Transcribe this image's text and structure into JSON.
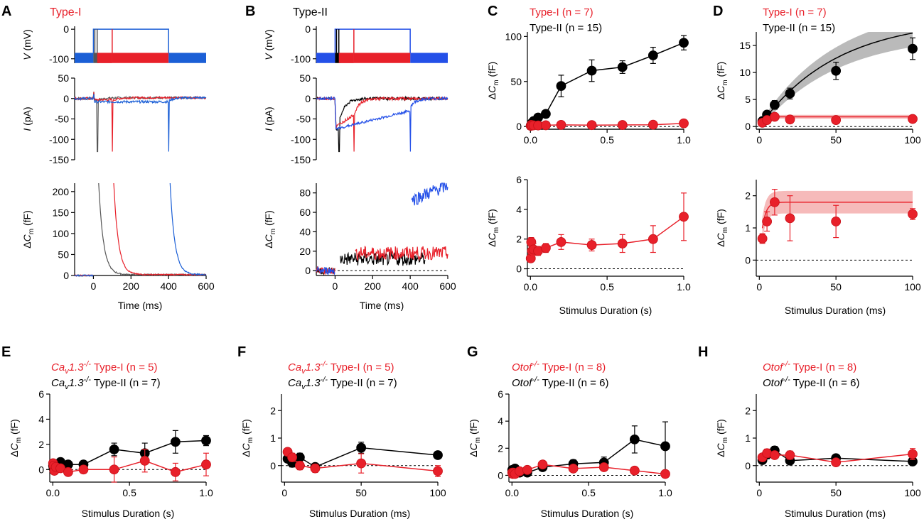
{
  "colors": {
    "red": "#e8202a",
    "black": "#000000",
    "blue": "#1b5fd6",
    "blue_trace": "#2450e8",
    "grey": "#555555",
    "red_band": "#f4a9a9",
    "grey_band": "#a9a9a9"
  },
  "panel_letters": {
    "A": "A",
    "B": "B",
    "C": "C",
    "D": "D",
    "E": "E",
    "F": "F",
    "G": "G",
    "H": "H"
  },
  "chart_data": [
    {
      "id": "A",
      "type": "line",
      "title": "Type-I",
      "protocol_ylabel": "V (mV)",
      "protocol_yticks": [
        "0",
        "-100"
      ],
      "current_ylabel": "I (pA)",
      "current_ylim": [
        -150,
        50
      ],
      "current_yticks": [
        50,
        0,
        -50,
        -100,
        -150
      ],
      "cm_ylabel": "ΔCm (fF)",
      "cm_ylim": [
        0,
        220
      ],
      "cm_yticks": [
        0,
        50,
        100,
        150,
        200
      ],
      "xlabel": "Time (ms)",
      "xlim": [
        -100,
        600
      ],
      "xticks": [
        0,
        200,
        400,
        600
      ],
      "series": [
        {
          "name": "20 ms step",
          "color": "grey",
          "step_end": 20
        },
        {
          "name": "100 ms step",
          "color": "red",
          "step_end": 100
        },
        {
          "name": "400 ms step",
          "color": "blue",
          "step_end": 400
        }
      ]
    },
    {
      "id": "B",
      "type": "line",
      "title": "Type-II",
      "protocol_ylabel": "V (mV)",
      "protocol_yticks": [
        "0",
        "-100"
      ],
      "current_ylabel": "I (pA)",
      "current_ylim": [
        -150,
        50
      ],
      "current_yticks": [
        50,
        0,
        -50,
        -100,
        -150
      ],
      "cm_ylabel": "ΔCm (fF)",
      "cm_ylim": [
        -5,
        90
      ],
      "cm_yticks": [
        0,
        20,
        40,
        60,
        80
      ],
      "xlabel": "Time (ms)",
      "xlim": [
        -100,
        600
      ],
      "xticks": [
        0,
        200,
        400,
        600
      ],
      "series": [
        {
          "name": "20 ms step",
          "color": "black",
          "step_end": 20,
          "cm_level": 12
        },
        {
          "name": "100 ms step",
          "color": "red",
          "step_end": 100,
          "cm_level": 18
        },
        {
          "name": "400 ms step",
          "color": "blue",
          "step_end": 400,
          "cm_level": 72
        }
      ]
    },
    {
      "id": "C",
      "type": "scatter",
      "legend": [
        {
          "label": "Type-I (n = 7)",
          "color": "red"
        },
        {
          "label": "Type-II (n = 15)",
          "color": "black"
        }
      ],
      "xlabel": "Stimulus Duration (s)",
      "xlim": [
        -0.02,
        1.0
      ],
      "xticks": [
        "0.0",
        "0.5",
        "1.0"
      ],
      "top": {
        "ylabel": "ΔCm (fF)",
        "ylim": [
          -3,
          105
        ],
        "yticks": [
          0,
          50,
          100
        ],
        "series": [
          {
            "name": "Type-II",
            "color": "black",
            "x": [
              0.002,
              0.005,
              0.01,
              0.02,
              0.05,
              0.1,
              0.2,
              0.4,
              0.6,
              0.8,
              1.0
            ],
            "y": [
              1,
              2,
              4,
              6,
              10,
              14,
              45,
              62,
              66,
              79,
              93
            ],
            "err": [
              0.5,
              0.5,
              1,
              1,
              2,
              2,
              12,
              12,
              7,
              9,
              8
            ]
          },
          {
            "name": "Type-I",
            "color": "red",
            "x": [
              0.002,
              0.005,
              0.01,
              0.02,
              0.05,
              0.1,
              0.2,
              0.4,
              0.6,
              0.8,
              1.0
            ],
            "y": [
              0.7,
              1.8,
              1.2,
              1.3,
              1.2,
              1.4,
              1.8,
              1.6,
              1.7,
              2.0,
              3.5
            ],
            "err": [
              0.2,
              0.3,
              0.3,
              0.4,
              0.3,
              0.3,
              0.5,
              0.4,
              0.6,
              0.9,
              1.6
            ]
          }
        ]
      },
      "bottom": {
        "ylabel": "ΔCm (fF)",
        "ylim": [
          -0.5,
          6
        ],
        "yticks": [
          0,
          2,
          4,
          6
        ],
        "series": [
          {
            "name": "Type-I",
            "color": "red",
            "x": [
              0.002,
              0.005,
              0.01,
              0.02,
              0.05,
              0.1,
              0.2,
              0.4,
              0.6,
              0.8,
              1.0
            ],
            "y": [
              0.7,
              1.8,
              1.2,
              1.3,
              1.2,
              1.4,
              1.8,
              1.6,
              1.7,
              2.0,
              3.5
            ],
            "err": [
              0.2,
              0.3,
              0.3,
              0.4,
              0.3,
              0.3,
              0.5,
              0.4,
              0.6,
              0.9,
              1.6
            ]
          }
        ]
      }
    },
    {
      "id": "D",
      "type": "scatter",
      "legend": [
        {
          "label": "Type-I (n = 7)",
          "color": "red"
        },
        {
          "label": "Type-II (n = 15)",
          "color": "black"
        }
      ],
      "xlabel": "Stimulus Duration (ms)",
      "xlim": [
        -2,
        100
      ],
      "xticks": [
        "0",
        "50",
        "100"
      ],
      "top": {
        "ylabel": "ΔCm (fF)",
        "ylim": [
          -0.5,
          17.5
        ],
        "yticks": [
          0,
          5,
          10,
          15
        ],
        "fits": [
          {
            "color": "black",
            "band": "grey_band",
            "amp": 20,
            "tau": 50
          },
          {
            "color": "red",
            "band": "red_band",
            "amp": 1.8,
            "tau": 2.5
          }
        ],
        "series": [
          {
            "name": "Type-II",
            "color": "black",
            "x": [
              2,
              5,
              10,
              20,
              50,
              100
            ],
            "y": [
              1.0,
              2.2,
              4.0,
              6.1,
              10.3,
              14.4
            ],
            "err": [
              0.3,
              0.5,
              0.8,
              1.0,
              1.6,
              2.0
            ]
          },
          {
            "name": "Type-I",
            "color": "red",
            "x": [
              2,
              5,
              10,
              20,
              50,
              100
            ],
            "y": [
              0.7,
              1.2,
              1.8,
              1.3,
              1.2,
              1.4
            ],
            "err": [
              0.2,
              0.3,
              0.4,
              0.7,
              0.5,
              0.2
            ]
          }
        ]
      },
      "bottom": {
        "ylabel": "ΔCm (fF)",
        "ylim": [
          -0.5,
          2.5
        ],
        "yticks": [
          0,
          1,
          2
        ],
        "fits": [
          {
            "color": "red",
            "band": "red_band",
            "amp": 1.8,
            "tau": 2.5
          }
        ],
        "series": [
          {
            "name": "Type-I",
            "color": "red",
            "x": [
              2,
              5,
              10,
              20,
              50,
              100
            ],
            "y": [
              0.67,
              1.2,
              1.8,
              1.3,
              1.2,
              1.43
            ],
            "err": [
              0.15,
              0.3,
              0.4,
              0.7,
              0.5,
              0.17
            ]
          }
        ]
      }
    },
    {
      "id": "E",
      "type": "scatter",
      "legend": [
        {
          "gene": "Ca",
          "sub": "v",
          "gene2": "1.3",
          "sup": "-/-",
          "label": " Type-I (n = 5)",
          "color": "red"
        },
        {
          "gene": "Ca",
          "sub": "v",
          "gene2": "1.3",
          "sup": "-/-",
          "label": " Type-II (n = 7)",
          "color": "black"
        }
      ],
      "xlabel": "Stimulus Duration (s)",
      "xlim": [
        -0.02,
        1.0
      ],
      "xticks": [
        "0.0",
        "0.5",
        "1.0"
      ],
      "ylabel": "ΔCm (fF)",
      "ylim": [
        -1,
        6
      ],
      "yticks": [
        0,
        2,
        4,
        6
      ],
      "series": [
        {
          "name": "Type-II",
          "color": "black",
          "x": [
            0.002,
            0.005,
            0.01,
            0.02,
            0.05,
            0.1,
            0.2,
            0.4,
            0.6,
            0.8,
            1.0
          ],
          "y": [
            0.3,
            0.1,
            0.0,
            0.2,
            0.6,
            0.4,
            0.4,
            1.6,
            1.3,
            2.2,
            2.3
          ],
          "err": [
            0.2,
            0.2,
            0.2,
            0.2,
            0.3,
            0.2,
            0.2,
            0.5,
            0.8,
            0.9,
            0.4
          ]
        },
        {
          "name": "Type-I",
          "color": "red",
          "x": [
            0.002,
            0.005,
            0.01,
            0.02,
            0.05,
            0.1,
            0.2,
            0.4,
            0.6,
            0.8,
            1.0
          ],
          "y": [
            0.5,
            0.3,
            -0.1,
            0.2,
            0.1,
            -0.2,
            0.0,
            0.0,
            0.7,
            -0.2,
            0.4
          ],
          "err": [
            0.2,
            0.2,
            0.2,
            0.2,
            0.2,
            0.2,
            0.3,
            1.0,
            0.9,
            0.7,
            0.9
          ]
        }
      ]
    },
    {
      "id": "F",
      "type": "scatter",
      "legend": [
        {
          "gene": "Ca",
          "sub": "v",
          "gene2": "1.3",
          "sup": "-/-",
          "label": " Type-I (n = 5)",
          "color": "red"
        },
        {
          "gene": "Ca",
          "sub": "v",
          "gene2": "1.3",
          "sup": "-/-",
          "label": " Type-II (n = 7)",
          "color": "black"
        }
      ],
      "xlabel": "Stimulus Duration (ms)",
      "xlim": [
        -2,
        100
      ],
      "xticks": [
        "0",
        "50",
        "100"
      ],
      "ylabel": "ΔCm (fF)",
      "ylim": [
        -0.6,
        2.6
      ],
      "yticks": [
        0,
        1,
        2
      ],
      "series": [
        {
          "name": "Type-II",
          "color": "black",
          "x": [
            2,
            5,
            10,
            20,
            50,
            100
          ],
          "y": [
            0.25,
            0.1,
            0.3,
            -0.05,
            0.65,
            0.38
          ],
          "err": [
            0.1,
            0.15,
            0.15,
            0.1,
            0.2,
            0.12
          ]
        },
        {
          "name": "Type-I",
          "color": "red",
          "x": [
            2,
            5,
            10,
            20,
            50,
            100
          ],
          "y": [
            0.5,
            0.3,
            0.0,
            -0.1,
            0.08,
            -0.2
          ],
          "err": [
            0.1,
            0.15,
            0.15,
            0.15,
            0.35,
            0.2
          ]
        }
      ]
    },
    {
      "id": "G",
      "type": "scatter",
      "legend": [
        {
          "gene": "Otof",
          "sub": "",
          "gene2": "",
          "sup": "-/-",
          "label": " Type-I (n = 8)",
          "color": "red"
        },
        {
          "gene": "Otof",
          "sub": "",
          "gene2": "",
          "sup": "-/-",
          "label": " Type-II (n = 6)",
          "color": "black"
        }
      ],
      "xlabel": "Stimulus Duration (s)",
      "xlim": [
        -0.02,
        1.0
      ],
      "xticks": [
        "0.0",
        "0.5",
        "1.0"
      ],
      "ylabel": "ΔCm (fF)",
      "ylim": [
        -0.5,
        6
      ],
      "yticks": [
        0,
        2,
        4,
        6
      ],
      "series": [
        {
          "name": "Type-II",
          "color": "black",
          "x": [
            0.002,
            0.005,
            0.01,
            0.02,
            0.05,
            0.1,
            0.2,
            0.4,
            0.6,
            0.8,
            1.0
          ],
          "y": [
            0.4,
            0.3,
            0.2,
            0.5,
            0.2,
            0.2,
            0.6,
            0.85,
            0.95,
            2.65,
            2.15
          ],
          "err": [
            0.2,
            0.2,
            0.2,
            0.2,
            0.2,
            0.2,
            0.2,
            0.3,
            0.4,
            1.0,
            1.8
          ]
        },
        {
          "name": "Type-I",
          "color": "red",
          "x": [
            0.002,
            0.005,
            0.01,
            0.02,
            0.05,
            0.1,
            0.2,
            0.4,
            0.6,
            0.8,
            1.0
          ],
          "y": [
            0.2,
            0.1,
            0.2,
            0.1,
            0.3,
            0.4,
            0.8,
            0.5,
            0.6,
            0.35,
            0.1
          ],
          "err": [
            0.1,
            0.1,
            0.1,
            0.1,
            0.1,
            0.1,
            0.2,
            0.2,
            0.2,
            0.2,
            0.1
          ]
        }
      ]
    },
    {
      "id": "H",
      "type": "scatter",
      "legend": [
        {
          "gene": "Otof",
          "sub": "",
          "gene2": "",
          "sup": "-/-",
          "label": " Type-I (n = 8)",
          "color": "red"
        },
        {
          "gene": "Otof",
          "sub": "",
          "gene2": "",
          "sup": "-/-",
          "label": " Type-II (n = 6)",
          "color": "black"
        }
      ],
      "xlabel": "Stimulus Duration (ms)",
      "xlim": [
        -2,
        100
      ],
      "xticks": [
        "0",
        "50",
        "100"
      ],
      "ylabel": "ΔCm (fF)",
      "ylim": [
        -0.6,
        2.6
      ],
      "yticks": [
        0,
        1,
        2
      ],
      "series": [
        {
          "name": "Type-II",
          "color": "black",
          "x": [
            2,
            5,
            10,
            20,
            50,
            100
          ],
          "y": [
            0.2,
            0.4,
            0.55,
            0.18,
            0.27,
            0.15
          ],
          "err": [
            0.1,
            0.15,
            0.15,
            0.1,
            0.1,
            0.1
          ]
        },
        {
          "name": "Type-I",
          "color": "red",
          "x": [
            2,
            5,
            10,
            20,
            50,
            100
          ],
          "y": [
            0.3,
            0.45,
            0.38,
            0.38,
            0.12,
            0.42
          ],
          "err": [
            0.1,
            0.15,
            0.12,
            0.15,
            0.1,
            0.2
          ]
        }
      ]
    }
  ]
}
